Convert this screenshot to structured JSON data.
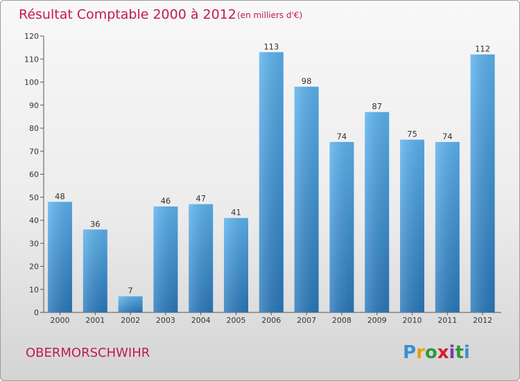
{
  "chart_data": {
    "type": "bar",
    "title": "Résultat Comptable 2000 à 2012",
    "subtitle": "(en milliers d'€)",
    "categories": [
      "2000",
      "2001",
      "2002",
      "2003",
      "2004",
      "2005",
      "2006",
      "2007",
      "2008",
      "2009",
      "2010",
      "2011",
      "2012"
    ],
    "values": [
      48,
      36,
      7,
      46,
      47,
      41,
      113,
      98,
      74,
      87,
      75,
      74,
      112
    ],
    "xlabel": "",
    "ylabel": "",
    "ylim": [
      0,
      120
    ],
    "yticks": [
      0,
      10,
      20,
      30,
      40,
      50,
      60,
      70,
      80,
      90,
      100,
      110,
      120
    ],
    "grid": false,
    "legend": "none",
    "bar_color": "#3a8fd4"
  },
  "footer": {
    "city": "OBERMORSCHWIHR",
    "brand_letters": [
      "P",
      "r",
      "o",
      "x",
      "i",
      "t",
      "i"
    ],
    "brand_colors": [
      "#3a8fd4",
      "#e8a000",
      "#2e9a3a",
      "#d4202a",
      "#7a3aa8",
      "#2e9a3a",
      "#3a8fd4"
    ]
  }
}
